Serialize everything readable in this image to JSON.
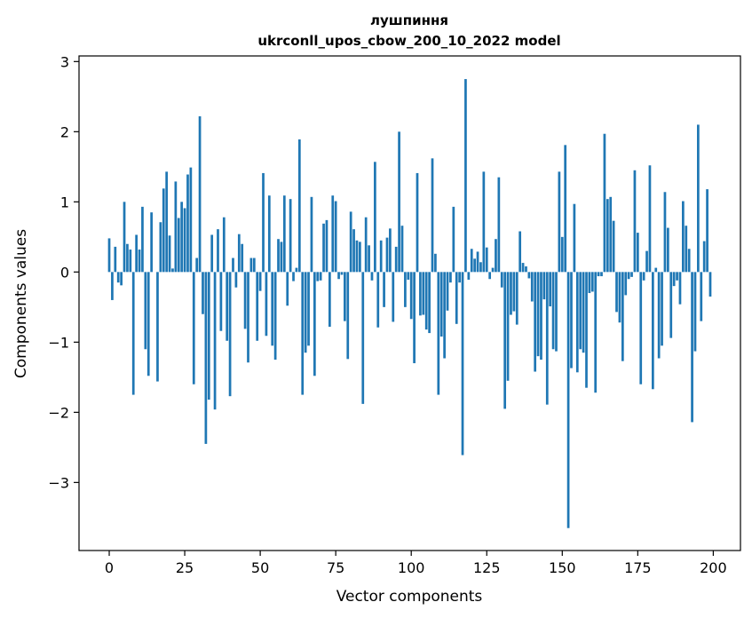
{
  "chart_data": {
    "type": "bar",
    "title": "лушпиння",
    "subtitle": "ukrconll_upos_cbow_200_10_2022 model",
    "xlabel": "Vector components",
    "ylabel": "Components values",
    "xlim": [
      -10,
      209
    ],
    "ylim": [
      -3.97,
      3.08
    ],
    "xticks": [
      0,
      25,
      50,
      75,
      100,
      125,
      150,
      175,
      200
    ],
    "yticks": [
      -3,
      -2,
      -1,
      0,
      1,
      2,
      3
    ],
    "xtick_labels": [
      "0",
      "25",
      "50",
      "75",
      "100",
      "125",
      "150",
      "175",
      "200"
    ],
    "ytick_labels": [
      "−3",
      "−2",
      "−1",
      "0",
      "1",
      "2",
      "3"
    ],
    "bar_color": "#1f77b4",
    "grid": false,
    "values": [
      0.48,
      -0.4,
      0.36,
      -0.15,
      -0.19,
      1.0,
      0.4,
      0.32,
      -1.75,
      0.53,
      0.32,
      0.93,
      -1.1,
      -1.48,
      0.85,
      0.0,
      -1.56,
      0.71,
      1.19,
      1.43,
      0.52,
      0.05,
      1.29,
      0.77,
      1.0,
      0.91,
      1.39,
      1.49,
      -1.6,
      0.2,
      2.22,
      -0.6,
      -2.45,
      -1.82,
      0.53,
      -1.96,
      0.61,
      -0.84,
      0.78,
      -0.98,
      -1.77,
      0.2,
      -0.22,
      0.54,
      0.4,
      -0.81,
      -1.29,
      0.2,
      0.2,
      -0.98,
      -0.27,
      1.41,
      -0.91,
      1.09,
      -1.05,
      -1.25,
      0.47,
      0.43,
      1.09,
      -0.48,
      1.04,
      -0.13,
      0.06,
      1.89,
      -1.75,
      -1.15,
      -1.05,
      1.07,
      -1.48,
      -0.13,
      -0.12,
      0.69,
      0.74,
      -0.78,
      1.09,
      1.01,
      -0.1,
      -0.04,
      -0.7,
      -1.24,
      0.86,
      0.61,
      0.45,
      0.43,
      -1.88,
      0.78,
      0.38,
      -0.12,
      1.57,
      -0.79,
      0.45,
      -0.5,
      0.49,
      0.62,
      -0.71,
      0.36,
      2.0,
      0.66,
      -0.5,
      -0.11,
      -0.67,
      -1.3,
      1.41,
      -0.62,
      -0.61,
      -0.82,
      -0.87,
      1.62,
      0.26,
      -1.75,
      -0.92,
      -1.23,
      -0.55,
      -0.15,
      0.93,
      -0.74,
      -0.15,
      -2.61,
      2.75,
      -0.11,
      0.33,
      0.19,
      0.29,
      0.14,
      1.43,
      0.35,
      -0.1,
      0.06,
      0.47,
      1.35,
      -0.22,
      -1.95,
      -1.55,
      -0.61,
      -0.56,
      -0.75,
      0.58,
      0.13,
      0.08,
      -0.09,
      -0.42,
      -1.42,
      -1.2,
      -1.25,
      -0.39,
      -1.89,
      -0.49,
      -1.1,
      -1.13,
      1.43,
      0.5,
      1.81,
      -3.65,
      -1.37,
      0.97,
      -1.43,
      -1.1,
      -1.15,
      -1.65,
      -0.3,
      -0.28,
      -1.72,
      -0.06,
      -0.06,
      1.97,
      1.04,
      1.07,
      0.73,
      -0.57,
      -0.72,
      -1.27,
      -0.33,
      -0.1,
      -0.07,
      1.45,
      0.56,
      -1.6,
      -0.12,
      0.3,
      1.52,
      -1.67,
      0.06,
      -1.23,
      -1.05,
      1.14,
      0.63,
      -0.94,
      -0.2,
      -0.12,
      -0.46,
      1.01,
      0.66,
      0.33,
      -2.14,
      -1.13,
      2.1,
      -0.7,
      0.44,
      1.18,
      -0.35
    ]
  }
}
